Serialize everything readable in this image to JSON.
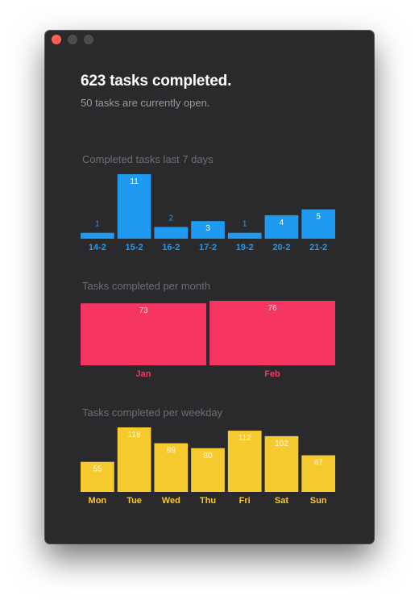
{
  "window": {
    "controls": [
      {
        "name": "close-button",
        "color": "#fe5f57"
      },
      {
        "name": "minimize-button",
        "color": "#4d4d50"
      },
      {
        "name": "maximize-button",
        "color": "#4d4d50"
      }
    ]
  },
  "summary": {
    "headline": "623 tasks completed.",
    "subline": "50 tasks are currently open."
  },
  "colors": {
    "background": "#2a2a2c",
    "blue": "#1e9bf0",
    "red": "#f73563",
    "yellow": "#f7ca2f"
  },
  "chart_data": [
    {
      "type": "bar",
      "title": "Completed tasks last 7 days",
      "categories": [
        "14-2",
        "15-2",
        "16-2",
        "17-2",
        "19-2",
        "20-2",
        "21-2"
      ],
      "values": [
        1,
        11,
        2,
        3,
        1,
        4,
        5
      ],
      "ylim": [
        0,
        11
      ],
      "color": "#1e9bf0",
      "value_label_color": "#1e9bf0"
    },
    {
      "type": "bar",
      "title": "Tasks completed per month",
      "categories": [
        "Jan",
        "Feb"
      ],
      "values": [
        73,
        76
      ],
      "ylim": [
        0,
        76
      ],
      "color": "#f73563",
      "value_label_color": "#ffffff"
    },
    {
      "type": "bar",
      "title": "Tasks completed per weekday",
      "categories": [
        "Mon",
        "Tue",
        "Wed",
        "Thu",
        "Fri",
        "Sat",
        "Sun"
      ],
      "values": [
        55,
        118,
        89,
        80,
        112,
        102,
        67
      ],
      "ylim": [
        0,
        118
      ],
      "color": "#f7ca2f",
      "value_label_color": "#ffffff"
    }
  ]
}
